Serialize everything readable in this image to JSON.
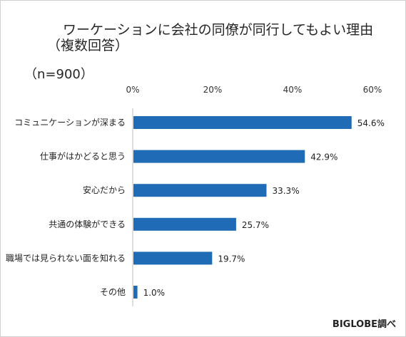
{
  "chart_data": {
    "type": "bar",
    "orientation": "horizontal",
    "title": "ワーケーションに会社の同僚が同行してもよい理由",
    "subtitle": "（複数回答）",
    "sample_size": "（n=900）",
    "source": "BIGLOBE調べ",
    "categories": [
      "コミュニケーションが深まる",
      "仕事がはかどると思う",
      "安心だから",
      "共通の体験ができる",
      "職場では見られない面を知れる",
      "その他"
    ],
    "values": [
      54.6,
      42.9,
      33.3,
      25.7,
      19.7,
      1.0
    ],
    "value_labels": [
      "54.6%",
      "42.9%",
      "33.3%",
      "25.7%",
      "19.7%",
      "1.0%"
    ],
    "xlim": [
      0,
      60
    ],
    "x_ticks": [
      0,
      20,
      40,
      60
    ],
    "x_tick_labels": [
      "0%",
      "20%",
      "40%",
      "60%"
    ],
    "bar_color": "#1f6bb5",
    "grid": false,
    "legend": "none"
  }
}
